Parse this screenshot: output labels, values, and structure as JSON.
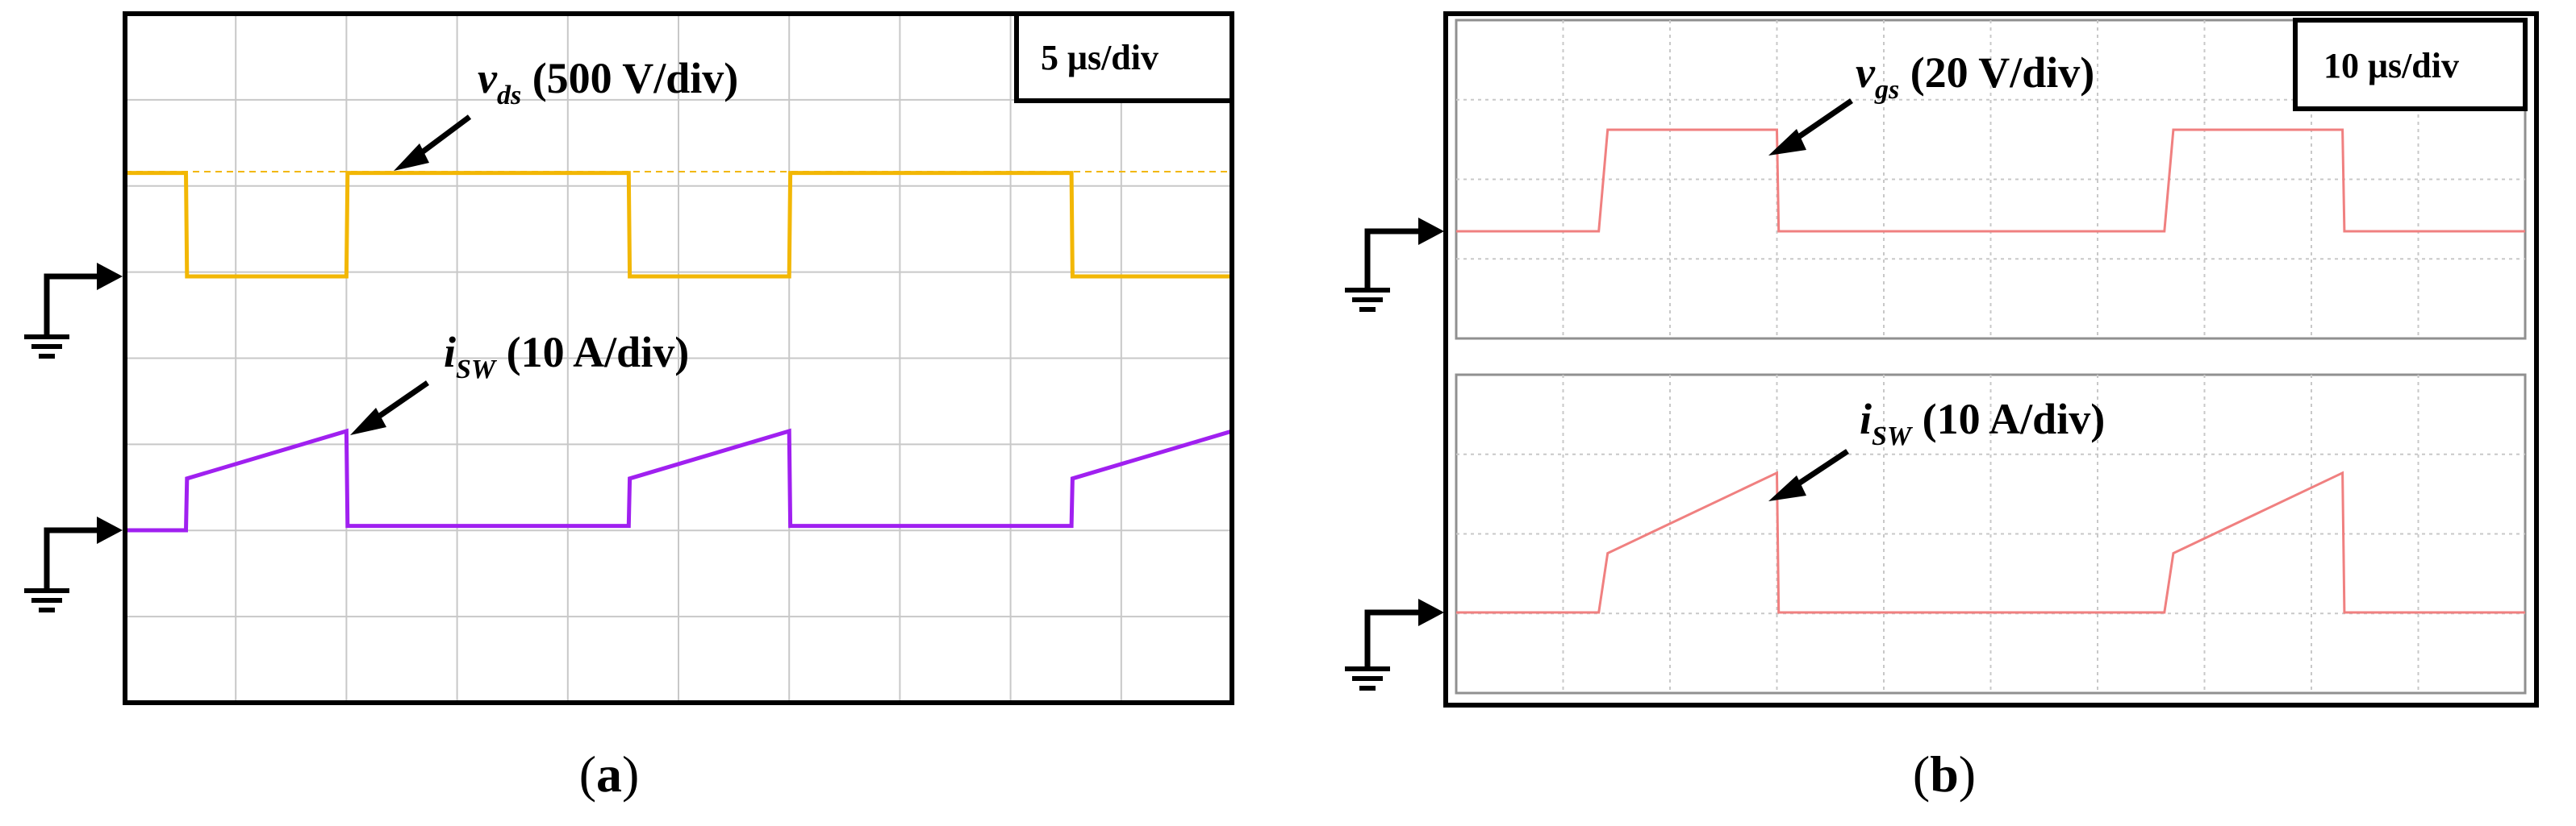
{
  "figure": {
    "panel_a_caption": "a",
    "panel_b_caption": "b"
  },
  "colors": {
    "vds": "#f2b705",
    "isw_a": "#a020f0",
    "trace_b": "#f08080",
    "grid": "#c8c8c8"
  },
  "chart_data": [
    {
      "type": "line",
      "panel": "a",
      "scale_label": "5 μs/div",
      "timebase": "5 μs/div",
      "grid": true,
      "x_divisions": 10,
      "y_divisions": 8,
      "series": [
        {
          "name": "v_ds",
          "label_main": "v",
          "label_sub": "ds",
          "label_unit": " (500 V/div)",
          "volts_per_div": 500,
          "color": "#f2b705",
          "x": [
            0,
            0.55,
            0.56,
            2.0,
            2.01,
            4.55,
            4.56,
            6.0,
            6.01,
            8.55,
            8.56,
            10
          ],
          "y": [
            1.2,
            1.2,
            0,
            0,
            1.2,
            1.2,
            0,
            0,
            1.2,
            1.2,
            0,
            0
          ]
        },
        {
          "name": "i_SW",
          "label_main": "i",
          "label_sub": "SW",
          "label_unit": " (10 A/div)",
          "amps_per_div": 10,
          "color": "#a020f0",
          "x": [
            0,
            0.55,
            0.56,
            2.0,
            2.01,
            4.55,
            4.56,
            6.0,
            6.01,
            8.55,
            8.56,
            10
          ],
          "y": [
            0,
            0,
            0.6,
            1.15,
            0.05,
            0.05,
            0.6,
            1.15,
            0.05,
            0.05,
            0.6,
            1.15
          ]
        }
      ]
    },
    {
      "type": "line",
      "panel": "b",
      "scale_label": "10 μs/div",
      "timebase": "10 μs/div",
      "grid": true,
      "x_divisions": 10,
      "series": [
        {
          "name": "v_gs",
          "label_main": "v",
          "label_sub": "gs",
          "label_unit": " (20 V/div)",
          "volts_per_div": 20,
          "color": "#f08080",
          "x": [
            0,
            1.6,
            1.7,
            3.6,
            3.62,
            7.95,
            8.05,
            9.95,
            9.97,
            12
          ],
          "y": [
            0,
            0,
            1.2,
            1.2,
            0,
            0,
            1.2,
            1.2,
            0,
            0
          ]
        },
        {
          "name": "i_SW",
          "label_main": "i",
          "label_sub": "SW",
          "label_unit": " (10 A/div)",
          "amps_per_div": 10,
          "color": "#f08080",
          "x": [
            0,
            1.6,
            1.7,
            3.6,
            3.62,
            7.95,
            8.05,
            9.95,
            9.97,
            12
          ],
          "y": [
            0,
            0,
            0.7,
            1.65,
            0,
            0,
            0.7,
            1.65,
            0,
            0
          ]
        }
      ]
    }
  ]
}
